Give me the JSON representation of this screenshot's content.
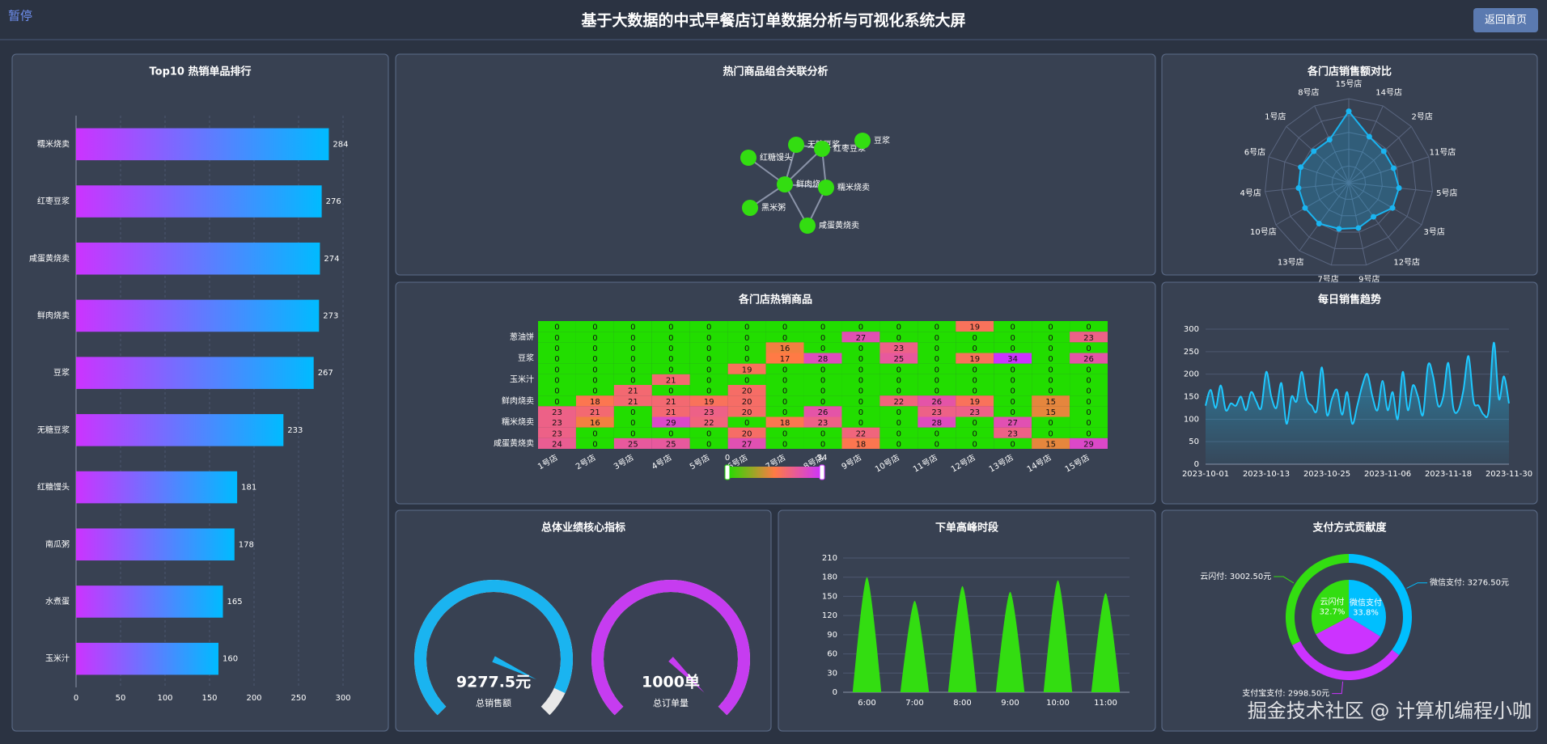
{
  "header": {
    "pause": "暂停",
    "title": "基于大数据的中式早餐店订单数据分析与可视化系统大屏",
    "back_button": "返回首页"
  },
  "watermark": "掘金技术社区 @ 计算机编程小咖",
  "chart_data": [
    {
      "type": "bar",
      "orientation": "horizontal",
      "title": "Top10 热销单品排行",
      "categories": [
        "糯米烧卖",
        "红枣豆浆",
        "咸蛋黄烧卖",
        "鲜肉烧卖",
        "豆浆",
        "无糖豆浆",
        "红糖馒头",
        "南瓜粥",
        "水煮蛋",
        "玉米汁"
      ],
      "values": [
        284,
        276,
        274,
        273,
        267,
        233,
        181,
        178,
        165,
        160
      ],
      "gradient": [
        "#cc33ff",
        "#00bbff"
      ],
      "xlim": [
        0,
        300
      ],
      "xticks": [
        0,
        50,
        100,
        150,
        200,
        250,
        300
      ],
      "grid": true
    },
    {
      "type": "graph",
      "title": "热门商品组合关联分析",
      "nodes": [
        "红糖馒头",
        "无糖豆浆",
        "红枣豆浆",
        "豆浆",
        "鲜肉烧卖",
        "糯米烧卖",
        "黑米粥",
        "咸蛋黄烧卖"
      ],
      "links": [
        [
          0,
          4
        ],
        [
          1,
          4
        ],
        [
          2,
          4
        ],
        [
          2,
          5
        ],
        [
          4,
          5
        ],
        [
          6,
          4
        ],
        [
          7,
          4
        ],
        [
          7,
          5
        ],
        [
          1,
          2
        ]
      ],
      "color": "#33dd11"
    },
    {
      "type": "radar",
      "title": "各门店销售额对比",
      "indicators": [
        "15号店",
        "14号店",
        "2号店",
        "11号店",
        "5号店",
        "3号店",
        "12号店",
        "9号店",
        "7号店",
        "13号店",
        "10号店",
        "4号店",
        "6号店",
        "1号店",
        "8号店"
      ],
      "values": [
        850,
        600,
        560,
        560,
        600,
        600,
        500,
        550,
        560,
        600,
        600,
        600,
        600,
        560,
        560
      ],
      "rlim": [
        0,
        1000
      ],
      "color": "#1ab4f0"
    },
    {
      "type": "heatmap",
      "title": "各门店热销商品",
      "x": [
        "1号店",
        "2号店",
        "3号店",
        "4号店",
        "5号店",
        "6号店",
        "7号店",
        "8号店",
        "9号店",
        "10号店",
        "11号店",
        "12号店",
        "13号店",
        "14号店",
        "15号店"
      ],
      "y": [
        null,
        "葱油饼",
        null,
        "豆浆",
        null,
        "玉米汁",
        null,
        "鲜肉烧卖",
        null,
        "糯米烧卖",
        null,
        "咸蛋黄烧卖"
      ],
      "values": [
        [
          0,
          0,
          0,
          0,
          0,
          0,
          0,
          0,
          0,
          0,
          0,
          19,
          0,
          0,
          0
        ],
        [
          0,
          0,
          0,
          0,
          0,
          0,
          0,
          0,
          27,
          0,
          0,
          0,
          0,
          0,
          23
        ],
        [
          0,
          0,
          0,
          0,
          0,
          0,
          16,
          0,
          0,
          23,
          0,
          0,
          0,
          0,
          0
        ],
        [
          0,
          0,
          0,
          0,
          0,
          0,
          17,
          28,
          0,
          25,
          0,
          19,
          34,
          0,
          26
        ],
        [
          0,
          0,
          0,
          0,
          0,
          19,
          0,
          0,
          0,
          0,
          0,
          0,
          0,
          0,
          0
        ],
        [
          0,
          0,
          0,
          21,
          0,
          0,
          0,
          0,
          0,
          0,
          0,
          0,
          0,
          0,
          0
        ],
        [
          0,
          0,
          21,
          0,
          0,
          20,
          0,
          0,
          0,
          0,
          0,
          0,
          0,
          0,
          0
        ],
        [
          0,
          18,
          21,
          21,
          19,
          20,
          0,
          0,
          0,
          22,
          26,
          19,
          0,
          15,
          0
        ],
        [
          23,
          21,
          0,
          21,
          23,
          20,
          0,
          26,
          0,
          0,
          23,
          23,
          0,
          15,
          0
        ],
        [
          23,
          16,
          0,
          29,
          22,
          0,
          18,
          23,
          0,
          0,
          28,
          0,
          27,
          0,
          0
        ],
        [
          23,
          0,
          0,
          0,
          0,
          20,
          0,
          0,
          22,
          0,
          0,
          0,
          23,
          0,
          0
        ],
        [
          24,
          0,
          25,
          25,
          0,
          27,
          0,
          0,
          18,
          0,
          0,
          0,
          0,
          15,
          29
        ]
      ],
      "visual_map": {
        "range": [
          0,
          34
        ],
        "colors": [
          "#22dd00",
          "#ff7a45",
          "#cc33ff"
        ]
      }
    },
    {
      "type": "line",
      "title": "每日销售趋势",
      "x": [
        "2023-10-01",
        "2023-10-02",
        "2023-10-03",
        "2023-10-04",
        "2023-10-05",
        "2023-10-06",
        "2023-10-07",
        "2023-10-08",
        "2023-10-09",
        "2023-10-10",
        "2023-10-11",
        "2023-10-12",
        "2023-10-13",
        "2023-10-14",
        "2023-10-15",
        "2023-10-16",
        "2023-10-17",
        "2023-10-18",
        "2023-10-19",
        "2023-10-20",
        "2023-10-21",
        "2023-10-22",
        "2023-10-23",
        "2023-10-24",
        "2023-10-25",
        "2023-10-26",
        "2023-10-27",
        "2023-10-28",
        "2023-10-29",
        "2023-10-30",
        "2023-10-31",
        "2023-11-01",
        "2023-11-02",
        "2023-11-03",
        "2023-11-04",
        "2023-11-05",
        "2023-11-06",
        "2023-11-07",
        "2023-11-08",
        "2023-11-09",
        "2023-11-10",
        "2023-11-11",
        "2023-11-12",
        "2023-11-13",
        "2023-11-14",
        "2023-11-15",
        "2023-11-16",
        "2023-11-17",
        "2023-11-18",
        "2023-11-19",
        "2023-11-20",
        "2023-11-21",
        "2023-11-22",
        "2023-11-23",
        "2023-11-24",
        "2023-11-25",
        "2023-11-26",
        "2023-11-27",
        "2023-11-28",
        "2023-11-29",
        "2023-11-30"
      ],
      "values": [
        130,
        165,
        125,
        175,
        120,
        135,
        130,
        150,
        120,
        160,
        140,
        125,
        205,
        150,
        125,
        180,
        90,
        150,
        140,
        205,
        145,
        130,
        120,
        215,
        110,
        145,
        165,
        110,
        160,
        90,
        130,
        175,
        200,
        150,
        120,
        185,
        120,
        160,
        100,
        205,
        120,
        175,
        150,
        110,
        220,
        195,
        130,
        150,
        225,
        125,
        120,
        165,
        240,
        140,
        130,
        110,
        120,
        270,
        145,
        195,
        135
      ],
      "color": "#1ec8ff",
      "ylim": [
        0,
        300
      ],
      "yticks": [
        0,
        50,
        100,
        150,
        200,
        250,
        300
      ],
      "grid": true
    },
    {
      "type": "gauge",
      "title": "总体业绩核心指标",
      "gauges": [
        {
          "name": "总销售额",
          "value": 9277.5,
          "value_label": "9277.5元",
          "range": [
            0,
            10000
          ],
          "color": "#1ab4f0"
        },
        {
          "name": "总订单量",
          "value": 1000,
          "value_label": "1000单",
          "range": [
            0,
            1000
          ],
          "color": "#c63cf0"
        }
      ]
    },
    {
      "type": "bar",
      "shape": "peak",
      "title": "下单高峰时段",
      "categories": [
        "6:00",
        "7:00",
        "8:00",
        "9:00",
        "10:00",
        "11:00"
      ],
      "values": [
        180,
        143,
        166,
        157,
        175,
        155
      ],
      "color": "#33dd11",
      "ylim": [
        0,
        210
      ],
      "yticks": [
        0,
        30,
        60,
        90,
        120,
        150,
        180,
        210
      ],
      "grid": true
    },
    {
      "type": "pie",
      "title": "支付方式贡献度",
      "categories": [
        "微信支付",
        "支付宝支付",
        "云闪付"
      ],
      "colors": [
        "#00bfff",
        "#cc33ff",
        "#33dd11"
      ],
      "values": [
        3276.5,
        2998.5,
        3002.5
      ],
      "value_labels": [
        "微信支付: 3276.50元",
        "支付宝支付: 2998.50元",
        "云闪付: 3002.50元"
      ],
      "inner_values": [
        33.8,
        33.5,
        32.7
      ],
      "inner_value_labels": [
        "33.8%",
        null,
        "32.7%"
      ]
    }
  ]
}
